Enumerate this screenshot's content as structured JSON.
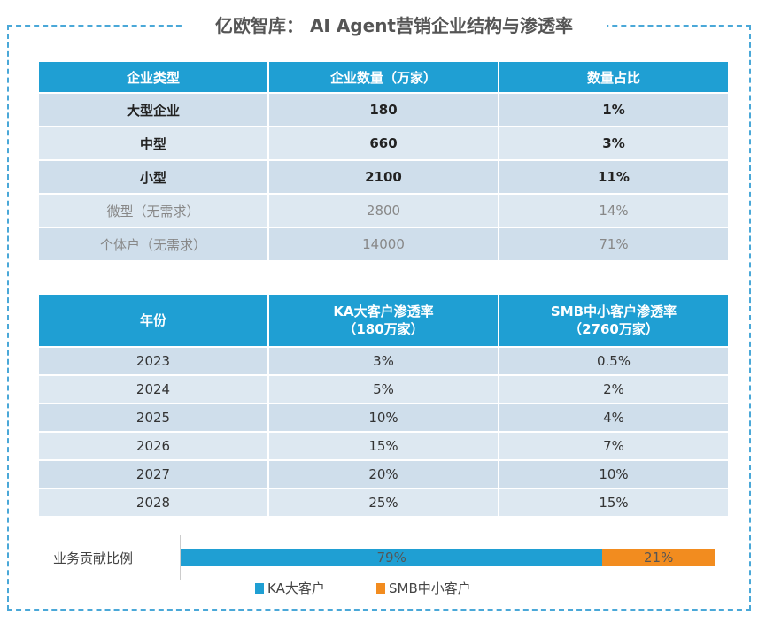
{
  "title": "亿欧智库： AI Agent营销企业结构与渗透率",
  "table1": {
    "headers": [
      "企业类型",
      "企业数量（万家）",
      "数量占比"
    ],
    "rows": [
      [
        "大型企业",
        "180",
        "1%"
      ],
      [
        "中型",
        "660",
        "3%"
      ],
      [
        "小型",
        "2100",
        "11%"
      ],
      [
        "微型（无需求）",
        "2800",
        "14%"
      ],
      [
        "个体户（无需求）",
        "14000",
        "71%"
      ]
    ]
  },
  "table2": {
    "headers": [
      "年份",
      "KA大客户渗透率",
      "SMB中小客户渗透率"
    ],
    "subheaders": [
      "",
      "（180万家）",
      "（2760万家）"
    ],
    "rows": [
      [
        "2023",
        "3%",
        "0.5%"
      ],
      [
        "2024",
        "5%",
        "2%"
      ],
      [
        "2025",
        "10%",
        "4%"
      ],
      [
        "2026",
        "15%",
        "7%"
      ],
      [
        "2027",
        "20%",
        "10%"
      ],
      [
        "2028",
        "25%",
        "15%"
      ]
    ]
  },
  "chart_data": {
    "type": "bar",
    "stacked": true,
    "orientation": "horizontal",
    "categories": [
      "业务贡献比例"
    ],
    "series": [
      {
        "name": "KA大客户",
        "values": [
          79
        ],
        "label": "79%",
        "color": "#1f9fd3"
      },
      {
        "name": "SMB中小客户",
        "values": [
          21
        ],
        "label": "21%",
        "color": "#f28c1f"
      }
    ],
    "xlim": [
      0,
      100
    ],
    "legend": "bottom"
  }
}
